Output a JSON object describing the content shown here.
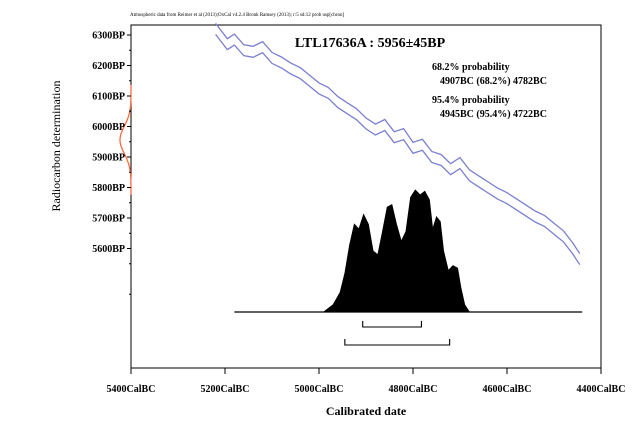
{
  "chart_data": {
    "type": "line",
    "credit": "Atmospheric data from Reimer et al (2013);OxCal v4.2.4 Bronk Ramsey (2013); r:5 sd:12 prob usp[chron]",
    "title": "LTL17636A : 5956±45BP",
    "xlabel": "Calibrated date",
    "ylabel": "Radiocarbon determination",
    "xlim": [
      -5400,
      -4400
    ],
    "ylim": [
      5400,
      6320
    ],
    "x_ticks": [
      {
        "value": -5400,
        "label": "5400CalBC"
      },
      {
        "value": -5200,
        "label": "5200CalBC"
      },
      {
        "value": -5000,
        "label": "5000CalBC"
      },
      {
        "value": -4800,
        "label": "4800CalBC"
      },
      {
        "value": -4600,
        "label": "4600CalBC"
      },
      {
        "value": -4400,
        "label": "4400CalBC"
      }
    ],
    "y_ticks": [
      {
        "value": 6300,
        "label": "6300BP"
      },
      {
        "value": 6200,
        "label": "6200BP"
      },
      {
        "value": 6100,
        "label": "6100BP"
      },
      {
        "value": 6000,
        "label": "6000BP"
      },
      {
        "value": 5900,
        "label": "5900BP"
      },
      {
        "value": 5800,
        "label": "5800BP"
      },
      {
        "value": 5700,
        "label": "5700BP"
      },
      {
        "value": 5600,
        "label": "5600BP"
      }
    ],
    "measurement": {
      "mean": 5956,
      "sigma": 45
    },
    "calibration_curve": [
      {
        "x": -5220,
        "y": 6320
      },
      {
        "x": -5195,
        "y": 6270
      },
      {
        "x": -5180,
        "y": 6285
      },
      {
        "x": -5160,
        "y": 6250
      },
      {
        "x": -5140,
        "y": 6245
      },
      {
        "x": -5120,
        "y": 6260
      },
      {
        "x": -5100,
        "y": 6225
      },
      {
        "x": -5080,
        "y": 6210
      },
      {
        "x": -5060,
        "y": 6190
      },
      {
        "x": -5040,
        "y": 6175
      },
      {
        "x": -5020,
        "y": 6150
      },
      {
        "x": -5000,
        "y": 6125
      },
      {
        "x": -4980,
        "y": 6110
      },
      {
        "x": -4960,
        "y": 6080
      },
      {
        "x": -4940,
        "y": 6060
      },
      {
        "x": -4920,
        "y": 6040
      },
      {
        "x": -4900,
        "y": 6010
      },
      {
        "x": -4880,
        "y": 5990
      },
      {
        "x": -4860,
        "y": 6005
      },
      {
        "x": -4840,
        "y": 5965
      },
      {
        "x": -4820,
        "y": 5975
      },
      {
        "x": -4800,
        "y": 5930
      },
      {
        "x": -4780,
        "y": 5940
      },
      {
        "x": -4760,
        "y": 5900
      },
      {
        "x": -4740,
        "y": 5890
      },
      {
        "x": -4720,
        "y": 5860
      },
      {
        "x": -4700,
        "y": 5880
      },
      {
        "x": -4680,
        "y": 5840
      },
      {
        "x": -4660,
        "y": 5820
      },
      {
        "x": -4640,
        "y": 5800
      },
      {
        "x": -4620,
        "y": 5780
      },
      {
        "x": -4600,
        "y": 5765
      },
      {
        "x": -4580,
        "y": 5745
      },
      {
        "x": -4560,
        "y": 5725
      },
      {
        "x": -4540,
        "y": 5705
      },
      {
        "x": -4520,
        "y": 5690
      },
      {
        "x": -4500,
        "y": 5665
      },
      {
        "x": -4480,
        "y": 5640
      },
      {
        "x": -4460,
        "y": 5600
      },
      {
        "x": -4445,
        "y": 5565
      }
    ],
    "curve_band_half_width": 18,
    "calibrated_distribution": [
      {
        "x": -4990,
        "y": 0.0
      },
      {
        "x": -4970,
        "y": 0.06
      },
      {
        "x": -4955,
        "y": 0.16
      },
      {
        "x": -4945,
        "y": 0.32
      },
      {
        "x": -4935,
        "y": 0.55
      },
      {
        "x": -4925,
        "y": 0.72
      },
      {
        "x": -4915,
        "y": 0.68
      },
      {
        "x": -4905,
        "y": 0.8
      },
      {
        "x": -4895,
        "y": 0.72
      },
      {
        "x": -4885,
        "y": 0.5
      },
      {
        "x": -4875,
        "y": 0.47
      },
      {
        "x": -4865,
        "y": 0.66
      },
      {
        "x": -4855,
        "y": 0.86
      },
      {
        "x": -4845,
        "y": 0.88
      },
      {
        "x": -4835,
        "y": 0.72
      },
      {
        "x": -4825,
        "y": 0.58
      },
      {
        "x": -4815,
        "y": 0.66
      },
      {
        "x": -4805,
        "y": 0.94
      },
      {
        "x": -4795,
        "y": 1.0
      },
      {
        "x": -4785,
        "y": 0.96
      },
      {
        "x": -4775,
        "y": 0.99
      },
      {
        "x": -4765,
        "y": 0.92
      },
      {
        "x": -4758,
        "y": 0.68
      },
      {
        "x": -4750,
        "y": 0.78
      },
      {
        "x": -4742,
        "y": 0.74
      },
      {
        "x": -4735,
        "y": 0.5
      },
      {
        "x": -4725,
        "y": 0.34
      },
      {
        "x": -4715,
        "y": 0.38
      },
      {
        "x": -4705,
        "y": 0.36
      },
      {
        "x": -4698,
        "y": 0.2
      },
      {
        "x": -4690,
        "y": 0.06
      },
      {
        "x": -4680,
        "y": 0.0
      }
    ],
    "distribution_baseline_range": [
      -5180,
      -4440
    ],
    "prob_68": {
      "label": "68.2% probability",
      "range_text": "4907BC (68.2%) 4782BC",
      "from": -4907,
      "to": -4782
    },
    "prob_95": {
      "label": "95.4% probability",
      "range_text": "4945BC (95.4%) 4722BC",
      "from": -4945,
      "to": -4722
    },
    "colors": {
      "curve": "#7b7fd0",
      "measurement": "#ff6a3d",
      "distribution": "#000000",
      "axis": "#000000"
    },
    "grid": false
  }
}
